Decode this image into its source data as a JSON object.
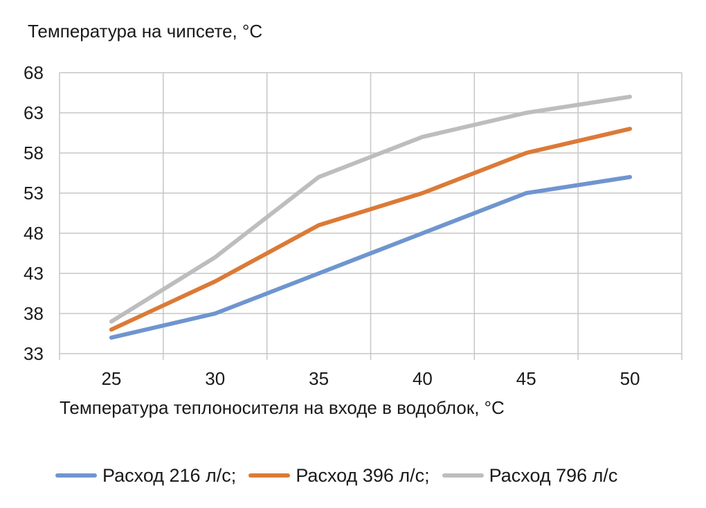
{
  "chart_data": {
    "type": "line",
    "ylabel": "Температура на чипсете, °С",
    "xlabel": "Температура теплоносителя на входе в водоблок, °С",
    "x": [
      25,
      30,
      35,
      40,
      45,
      50
    ],
    "categories": [
      "25",
      "30",
      "35",
      "40",
      "45",
      "50"
    ],
    "yticks": [
      33,
      38,
      43,
      48,
      53,
      58,
      63,
      68
    ],
    "ylim": [
      33,
      68
    ],
    "grid": true,
    "legend_position": "bottom",
    "series": [
      {
        "name": "Расход 216 л/с;",
        "color": "#6f95cf",
        "values": [
          35,
          38,
          43,
          48,
          53,
          55
        ]
      },
      {
        "name": "Расход 396 л/с;",
        "color": "#db7a37",
        "values": [
          36,
          42,
          49,
          53,
          58,
          61
        ]
      },
      {
        "name": "Расход 796 л/с",
        "color": "#bdbdbd",
        "values": [
          37,
          45,
          55,
          60,
          63,
          65
        ]
      }
    ]
  }
}
